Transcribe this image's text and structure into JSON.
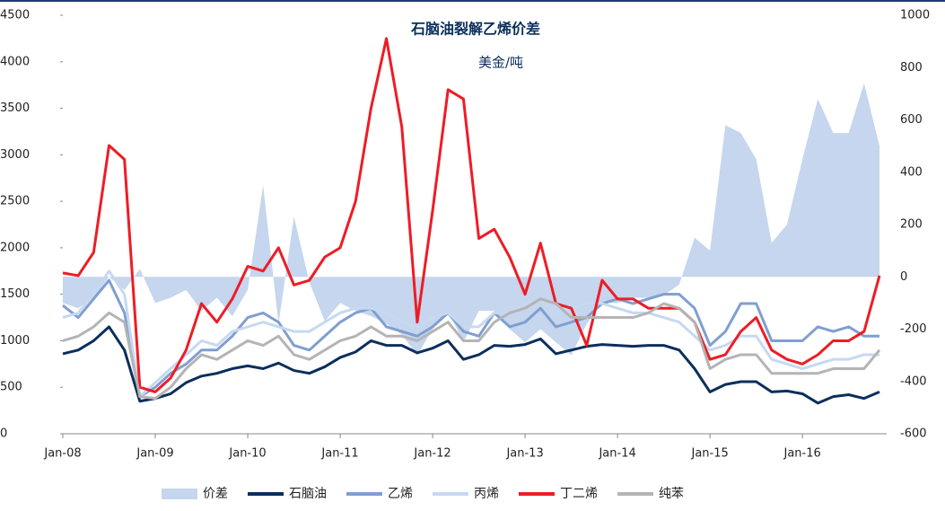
{
  "chart_data": {
    "type": "line",
    "title": "石脑油裂解乙烯价差",
    "subtitle": "美金/吨",
    "categories": [
      "Jan-08",
      null,
      null,
      null,
      null,
      null,
      "Jan-09",
      null,
      null,
      null,
      null,
      null,
      "Jan-10",
      null,
      null,
      null,
      null,
      null,
      "Jan-11",
      null,
      null,
      null,
      null,
      null,
      "Jan-12",
      null,
      null,
      null,
      null,
      null,
      "Jan-13",
      null,
      null,
      null,
      null,
      null,
      "Jan-14",
      null,
      null,
      null,
      null,
      null,
      "Jan-15",
      null,
      null,
      null,
      null,
      null,
      "Jan-16",
      null,
      null,
      null,
      null,
      null
    ],
    "ylim": [
      0,
      4500
    ],
    "yticks": [
      0,
      500,
      1000,
      1500,
      2000,
      2500,
      3000,
      3500,
      4000,
      4500
    ],
    "y2lim": [
      -600,
      1000
    ],
    "y2ticks": [
      -600,
      -400,
      -200,
      0,
      200,
      400,
      600,
      800,
      1000
    ],
    "legend": "bottom",
    "series": [
      {
        "name": "价差",
        "type": "area",
        "axis": "y2",
        "color": "#c5d6ee",
        "values": [
          -100,
          -120,
          -80,
          0,
          -50,
          30,
          -100,
          -80,
          -50,
          -130,
          -80,
          -150,
          -50,
          350,
          -180,
          230,
          -20,
          -170,
          -100,
          -130,
          -150,
          -180,
          -220,
          -300,
          -200,
          -130,
          -250,
          -130,
          -130,
          -200,
          -250,
          -200,
          -250,
          -300,
          -180,
          -100,
          -100,
          -80,
          -80,
          -70,
          -30,
          150,
          100,
          580,
          550,
          450,
          130,
          200,
          450,
          680,
          550,
          550,
          740,
          500
        ]
      },
      {
        "name": "石脑油",
        "color": "#0b2f5c",
        "values": [
          860,
          900,
          1000,
          1150,
          900,
          350,
          380,
          430,
          550,
          620,
          650,
          700,
          730,
          700,
          760,
          680,
          650,
          720,
          820,
          880,
          1000,
          950,
          950,
          870,
          920,
          1000,
          800,
          850,
          950,
          940,
          960,
          1020,
          860,
          900,
          940,
          960,
          950,
          940,
          950,
          950,
          900,
          700,
          450,
          530,
          560,
          560,
          450,
          460,
          430,
          330,
          400,
          420,
          380,
          450
        ]
      },
      {
        "name": "乙烯",
        "color": "#7f9fcf",
        "values": [
          1380,
          1250,
          1450,
          1650,
          1300,
          400,
          500,
          650,
          750,
          900,
          900,
          1050,
          1250,
          1300,
          1200,
          950,
          900,
          1050,
          1200,
          1300,
          1350,
          1150,
          1100,
          1050,
          1150,
          1300,
          1100,
          1050,
          1300,
          1150,
          1200,
          1350,
          1150,
          1200,
          1250,
          1400,
          1450,
          1400,
          1450,
          1500,
          1500,
          1350,
          950,
          1100,
          1400,
          1400,
          1000,
          1000,
          1000,
          1150,
          1100,
          1150,
          1050,
          1050
        ]
      },
      {
        "name": "丙烯",
        "color": "#c6d9f1",
        "values": [
          1250,
          1300,
          1500,
          1750,
          1500,
          400,
          550,
          700,
          850,
          1000,
          950,
          1100,
          1150,
          1200,
          1150,
          1100,
          1100,
          1200,
          1300,
          1350,
          1350,
          1300,
          1200,
          1150,
          1250,
          1300,
          1150,
          1150,
          1300,
          1300,
          1400,
          1450,
          1300,
          1350,
          1400,
          1400,
          1350,
          1300,
          1300,
          1250,
          1200,
          1050,
          900,
          950,
          1050,
          1050,
          800,
          750,
          700,
          750,
          800,
          800,
          850,
          850
        ]
      },
      {
        "name": "丁二烯",
        "color": "#ee1c25",
        "values": [
          1730,
          1700,
          1950,
          3100,
          2950,
          500,
          450,
          600,
          900,
          1400,
          1200,
          1450,
          1800,
          1750,
          2000,
          1600,
          1650,
          1900,
          2000,
          2500,
          3500,
          4250,
          3300,
          1200,
          2400,
          3700,
          3600,
          2100,
          2200,
          1900,
          1500,
          2050,
          1400,
          1350,
          950,
          1650,
          1450,
          1450,
          1350,
          1350,
          1350,
          1200,
          800,
          850,
          1100,
          1250,
          900,
          800,
          750,
          850,
          1000,
          1000,
          1100,
          1700
        ]
      },
      {
        "name": "纯苯",
        "color": "#b4b4b4",
        "values": [
          1000,
          1050,
          1150,
          1300,
          1200,
          400,
          380,
          500,
          700,
          850,
          800,
          900,
          1000,
          950,
          1050,
          850,
          800,
          900,
          1000,
          1050,
          1150,
          1050,
          1050,
          1000,
          1100,
          1200,
          1000,
          1000,
          1200,
          1300,
          1350,
          1450,
          1400,
          1250,
          1250,
          1250,
          1250,
          1250,
          1300,
          1400,
          1350,
          1200,
          700,
          800,
          850,
          850,
          650,
          650,
          650,
          650,
          700,
          700,
          700,
          900
        ]
      }
    ]
  }
}
